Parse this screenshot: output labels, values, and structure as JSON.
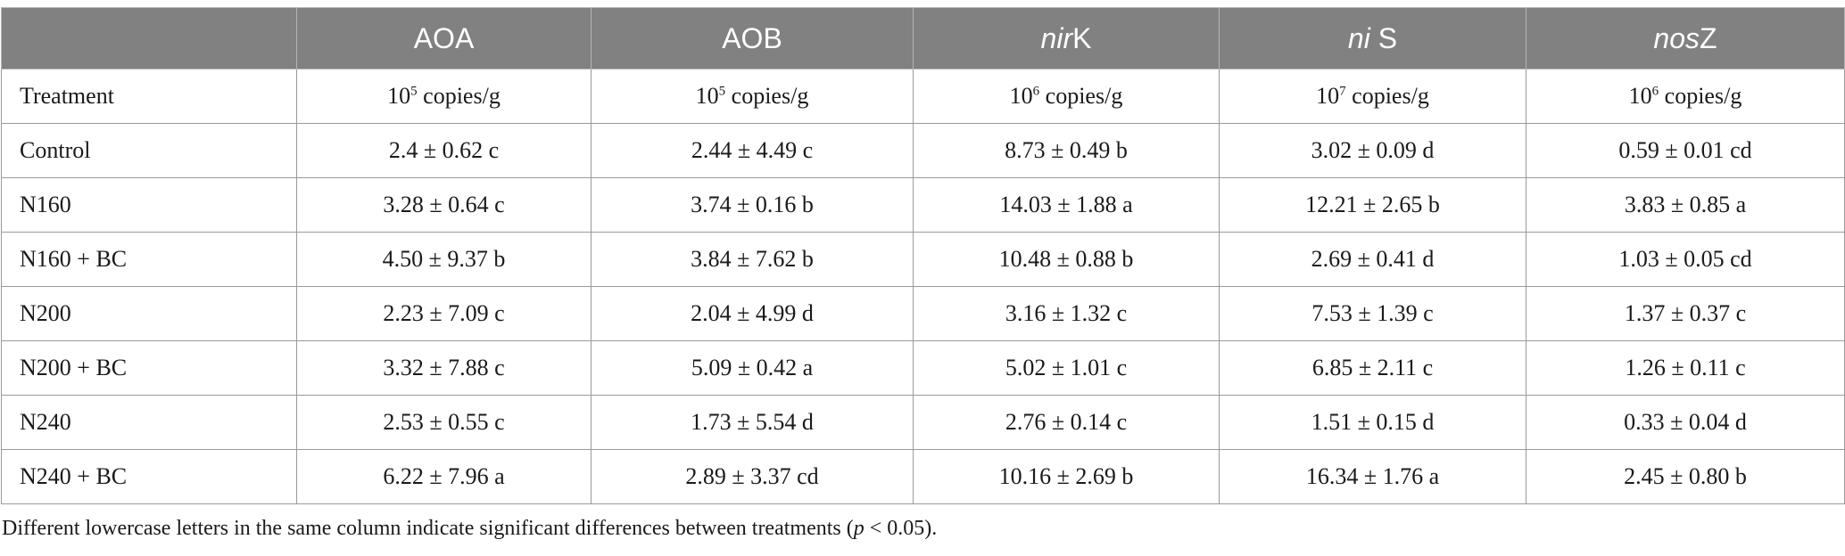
{
  "header": {
    "corner": "",
    "columns": [
      {
        "pre": "",
        "italic": "",
        "post": "AOA"
      },
      {
        "pre": "",
        "italic": "",
        "post": "AOB"
      },
      {
        "pre": "",
        "italic": "nir",
        "post": "K"
      },
      {
        "pre": "",
        "italic": "ni",
        "post": " S"
      },
      {
        "pre": "",
        "italic": "nos",
        "post": "Z"
      }
    ]
  },
  "units_row": {
    "label": "Treatment",
    "units": [
      {
        "base": "10",
        "exp": "5",
        "text": " copies/g"
      },
      {
        "base": "10",
        "exp": "5",
        "text": " copies/g"
      },
      {
        "base": "10",
        "exp": "6",
        "text": " copies/g"
      },
      {
        "base": "10",
        "exp": "7",
        "text": " copies/g"
      },
      {
        "base": "10",
        "exp": "6",
        "text": " copies/g"
      }
    ]
  },
  "rows": [
    {
      "treatment": "Control",
      "cells": [
        "2.4 ± 0.62 c",
        "2.44 ± 4.49 c",
        "8.73 ± 0.49 b",
        "3.02 ± 0.09 d",
        "0.59 ± 0.01 cd"
      ]
    },
    {
      "treatment": "N160",
      "cells": [
        "3.28 ± 0.64 c",
        "3.74 ± 0.16 b",
        "14.03 ± 1.88 a",
        "12.21 ± 2.65 b",
        "3.83 ± 0.85 a"
      ]
    },
    {
      "treatment": "N160 + BC",
      "cells": [
        "4.50 ± 9.37 b",
        "3.84 ± 7.62 b",
        "10.48 ± 0.88 b",
        "2.69 ± 0.41 d",
        "1.03 ± 0.05 cd"
      ]
    },
    {
      "treatment": "N200",
      "cells": [
        "2.23 ± 7.09 c",
        "2.04 ± 4.99 d",
        "3.16 ± 1.32 c",
        "7.53 ± 1.39 c",
        "1.37 ± 0.37 c"
      ]
    },
    {
      "treatment": "N200 + BC",
      "cells": [
        "3.32 ± 7.88 c",
        "5.09 ± 0.42 a",
        "5.02 ± 1.01 c",
        "6.85 ± 2.11 c",
        "1.26 ± 0.11 c"
      ]
    },
    {
      "treatment": "N240",
      "cells": [
        "2.53 ± 0.55 c",
        "1.73 ± 5.54 d",
        "2.76 ± 0.14 c",
        "1.51 ± 0.15 d",
        "0.33 ± 0.04 d"
      ]
    },
    {
      "treatment": "N240 + BC",
      "cells": [
        "6.22 ± 7.96 a",
        "2.89 ± 3.37 cd",
        "10.16 ± 2.69 b",
        "16.34 ± 1.76 a",
        "2.45 ± 0.80 b"
      ]
    }
  ],
  "footnote": {
    "before": "Different lowercase letters in the same column indicate significant differences between treatments (",
    "italic": "p",
    "after": " < 0.05)."
  },
  "colors": {
    "header_bg": "#818181",
    "header_text": "#ffffff",
    "border": "#9a9a9a"
  }
}
